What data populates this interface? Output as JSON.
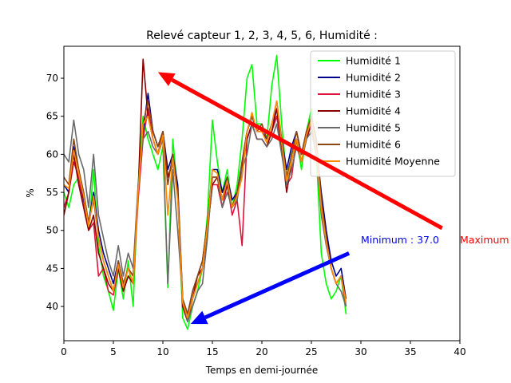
{
  "chart_data": {
    "type": "line",
    "title": "Relevé capteur 1, 2, 3, 4, 5, 6, Humidité :",
    "xlabel": "Temps en demi-journée",
    "ylabel": "%",
    "xlim": [
      0,
      40
    ],
    "ylim": [
      35.5,
      74.2
    ],
    "xticks": [
      0,
      5,
      10,
      15,
      20,
      25,
      30,
      35,
      40
    ],
    "yticks": [
      40,
      45,
      50,
      55,
      60,
      65,
      70
    ],
    "grid": false,
    "legend_position": "top-right",
    "series": [
      {
        "name": "Humidité 1",
        "color": "#00ff00",
        "x": [
          0,
          0.5,
          1,
          1.5,
          2,
          2.5,
          3,
          3.5,
          4,
          4.5,
          5,
          5.5,
          6,
          6.5,
          7,
          7.5,
          8,
          8.5,
          9,
          9.5,
          10,
          10.5,
          11,
          11.5,
          12,
          12.5,
          13,
          13.5,
          14,
          14.5,
          15,
          15.5,
          16,
          16.5,
          17,
          17.5,
          18,
          18.5,
          19,
          19.5,
          20,
          20.5,
          21,
          21.5,
          22,
          22.5,
          23,
          23.5,
          24,
          24.5,
          25,
          25.5,
          26,
          26.5,
          27,
          27.5,
          28,
          28.5
        ],
        "y": [
          55,
          53,
          56,
          57,
          55,
          50,
          58,
          48,
          44,
          42,
          39.5,
          45,
          41,
          46,
          40,
          56,
          65,
          62,
          60,
          58,
          61,
          42.5,
          62,
          55,
          38.5,
          37,
          40,
          42,
          45,
          52,
          64.5,
          59,
          55,
          58,
          53,
          56,
          62,
          70,
          71.8,
          64,
          64,
          62,
          69,
          73,
          64,
          57,
          60,
          62,
          58,
          63,
          66,
          60,
          47,
          43,
          41,
          42,
          44,
          39
        ]
      },
      {
        "name": "Humidité 2",
        "color": "#00008b",
        "x": [
          0,
          0.5,
          1,
          1.5,
          2,
          2.5,
          3,
          3.5,
          4,
          4.5,
          5,
          5.5,
          6,
          6.5,
          7,
          7.5,
          8,
          8.5,
          9,
          9.5,
          10,
          10.5,
          11,
          11.5,
          12,
          12.5,
          13,
          13.5,
          14,
          14.5,
          15,
          15.5,
          16,
          16.5,
          17,
          17.5,
          18,
          18.5,
          19,
          19.5,
          20,
          20.5,
          21,
          21.5,
          22,
          22.5,
          23,
          23.5,
          24,
          24.5,
          25,
          25.5,
          26,
          26.5,
          27,
          27.5,
          28,
          28.5
        ],
        "y": [
          56,
          55,
          61,
          58,
          54,
          51,
          55,
          50,
          47,
          45,
          43,
          46,
          43,
          45,
          44,
          55,
          63,
          68,
          63,
          61,
          63,
          58,
          60,
          56,
          41,
          39,
          42,
          44,
          46,
          51,
          58,
          58,
          55,
          57,
          54,
          55,
          59,
          63,
          65,
          63,
          63,
          62,
          64,
          66,
          62,
          58,
          61,
          63,
          60,
          63,
          64,
          61,
          55,
          50,
          46,
          44,
          45,
          41
        ]
      },
      {
        "name": "Humidité 3",
        "color": "#dc143c",
        "x": [
          0,
          0.5,
          1,
          1.5,
          2,
          2.5,
          3,
          3.5,
          4,
          4.5,
          5,
          5.5,
          6,
          6.5,
          7,
          7.5,
          8,
          8.5,
          9,
          9.5,
          10,
          10.5,
          11,
          11.5,
          12,
          12.5,
          13,
          13.5,
          14,
          14.5,
          15,
          15.5,
          16,
          16.5,
          17,
          17.5,
          18,
          18.5,
          19,
          19.5,
          20,
          20.5,
          21,
          21.5,
          22,
          22.5,
          23,
          23.5,
          24,
          24.5,
          25,
          25.5,
          26,
          26.5,
          27,
          27.5,
          28,
          28.5
        ],
        "y": [
          53,
          55,
          59,
          57,
          53,
          50,
          51,
          44,
          45,
          42,
          41.5,
          45,
          42,
          44,
          43,
          54,
          62,
          66,
          62,
          60,
          62,
          57,
          59,
          55,
          40,
          38.5,
          41,
          43,
          45,
          50,
          56,
          56,
          53,
          56,
          52,
          54,
          48,
          62,
          64,
          62,
          62,
          61,
          63,
          65,
          61,
          56,
          57,
          62,
          59,
          62,
          64,
          60,
          54,
          49,
          45,
          43,
          44,
          40
        ]
      },
      {
        "name": "Humidité 4",
        "color": "#8b0000",
        "x": [
          0,
          0.5,
          1,
          1.5,
          2,
          2.5,
          3,
          3.5,
          4,
          4.5,
          5,
          5.5,
          6,
          6.5,
          7,
          7.5,
          8,
          8.5,
          9,
          9.5,
          10,
          10.5,
          11,
          11.5,
          12,
          12.5,
          13,
          13.5,
          14,
          14.5,
          15,
          15.5,
          16,
          16.5,
          17,
          17.5,
          18,
          18.5,
          19,
          19.5,
          20,
          20.5,
          21,
          21.5,
          22,
          22.5,
          23,
          23.5,
          24,
          24.5,
          25,
          25.5,
          26,
          26.5,
          27,
          27.5,
          28,
          28.5
        ],
        "y": [
          52,
          55,
          60,
          56,
          53,
          50,
          52,
          47,
          45,
          43,
          42,
          45,
          42,
          44,
          43,
          55,
          72.5,
          65,
          62,
          60,
          63,
          57,
          59,
          55,
          40,
          38,
          41,
          44,
          45,
          50,
          56,
          57,
          54,
          56,
          53,
          55,
          58,
          62,
          64,
          62,
          62,
          61,
          63,
          66,
          61,
          55,
          59,
          62,
          59,
          62,
          64,
          60,
          54,
          49,
          45,
          43,
          44,
          41
        ]
      },
      {
        "name": "Humidité 5",
        "color": "#696969",
        "x": [
          0,
          0.5,
          1,
          1.5,
          2,
          2.5,
          3,
          3.5,
          4,
          4.5,
          5,
          5.5,
          6,
          6.5,
          7,
          7.5,
          8,
          8.5,
          9,
          9.5,
          10,
          10.5,
          11,
          11.5,
          12,
          12.5,
          13,
          13.5,
          14,
          14.5,
          15,
          15.5,
          16,
          16.5,
          17,
          17.5,
          18,
          18.5,
          19,
          19.5,
          20,
          20.5,
          21,
          21.5,
          22,
          22.5,
          23,
          23.5,
          24,
          24.5,
          25,
          25.5,
          26,
          26.5,
          27,
          27.5,
          28,
          28.5
        ],
        "y": [
          60,
          59,
          64.5,
          60,
          58,
          53,
          60,
          52,
          49,
          46,
          44,
          48,
          44,
          47,
          45,
          56,
          62,
          63,
          61,
          60,
          62,
          43,
          58,
          50,
          41,
          38,
          40,
          42,
          43,
          49,
          57,
          57,
          53,
          55,
          53,
          54,
          58,
          60,
          64,
          62,
          62,
          61,
          62,
          64,
          60,
          56,
          58,
          61,
          59,
          62,
          63,
          60,
          52,
          48,
          45,
          43,
          42,
          40
        ]
      },
      {
        "name": "Humidité 6",
        "color": "#8b4513",
        "x": [
          0,
          0.5,
          1,
          1.5,
          2,
          2.5,
          3,
          3.5,
          4,
          4.5,
          5,
          5.5,
          6,
          6.5,
          7,
          7.5,
          8,
          8.5,
          9,
          9.5,
          10,
          10.5,
          11,
          11.5,
          12,
          12.5,
          13,
          13.5,
          14,
          14.5,
          15,
          15.5,
          16,
          16.5,
          17,
          17.5,
          18,
          18.5,
          19,
          19.5,
          20,
          20.5,
          21,
          21.5,
          22,
          22.5,
          23,
          23.5,
          24,
          24.5,
          25,
          25.5,
          26,
          26.5,
          27,
          27.5,
          28,
          28.5
        ],
        "y": [
          57,
          56,
          62,
          58,
          55,
          51,
          54,
          49,
          46,
          44,
          42,
          46,
          43,
          45,
          44,
          55,
          64,
          67,
          63,
          61,
          63,
          56,
          60,
          55,
          41,
          39,
          42,
          44,
          46,
          51,
          57,
          57,
          54,
          57,
          53,
          55,
          59,
          63,
          65,
          63,
          64,
          62,
          64,
          67,
          62,
          57,
          60,
          63,
          60,
          63,
          65,
          62,
          54,
          49,
          45,
          43,
          44,
          41
        ]
      },
      {
        "name": "Humidité Moyenne",
        "color": "#ff8c00",
        "x": [
          0,
          0.5,
          1,
          1.5,
          2,
          2.5,
          3,
          3.5,
          4,
          4.5,
          5,
          5.5,
          6,
          6.5,
          7,
          7.5,
          8,
          8.5,
          9,
          9.5,
          10,
          10.5,
          11,
          11.5,
          12,
          12.5,
          13,
          13.5,
          14,
          14.5,
          15,
          15.5,
          16,
          16.5,
          17,
          17.5,
          18,
          18.5,
          19,
          19.5,
          20,
          20.5,
          21,
          21.5,
          22,
          22.5,
          23,
          23.5,
          24,
          24.5,
          25,
          25.5,
          26,
          26.5,
          27,
          27.5,
          28,
          28.5
        ],
        "y": [
          56,
          55.5,
          60.5,
          57.5,
          54.5,
          50.5,
          54.5,
          49,
          46,
          44,
          42,
          45.5,
          42.5,
          45,
          43,
          55,
          64,
          65,
          62,
          60,
          62.5,
          52,
          59.5,
          54,
          40.5,
          38.5,
          41,
          43,
          45,
          50.5,
          58,
          57.5,
          54,
          56.5,
          53,
          54.5,
          57,
          63,
          65.5,
          63,
          63,
          61.5,
          64,
          67,
          61.5,
          56.5,
          59,
          62,
          59,
          62.5,
          64.5,
          60.5,
          53,
          48.5,
          45,
          43,
          44,
          40.5
        ]
      }
    ],
    "annotations": [
      {
        "text": "Minimum : 37.0",
        "color": "#0000ff"
      },
      {
        "text": "Maximum",
        "color": "#ff0000"
      }
    ],
    "arrows": [
      {
        "from": [
          38.2,
          50.3
        ],
        "to": [
          9.5,
          70.8
        ],
        "color": "#ff0000"
      },
      {
        "from": [
          28.8,
          47.0
        ],
        "to": [
          12.8,
          37.7
        ],
        "color": "#0000ff"
      }
    ]
  }
}
